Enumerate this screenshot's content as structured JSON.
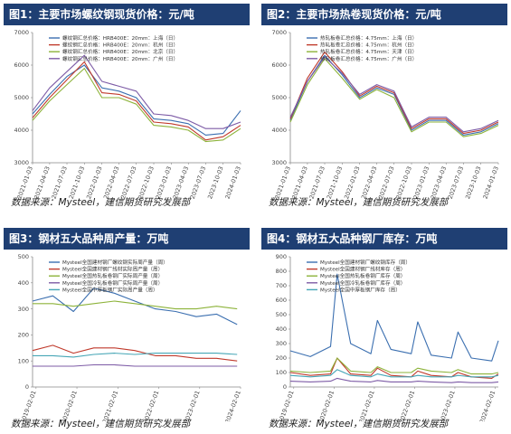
{
  "source_text": "数据来源：Mysteel，建信期货研究发展部",
  "chart_data": [
    {
      "type": "line",
      "title": "图1：主要市场螺纹钢现货价格：元/吨",
      "x": [
        "2021-01-03",
        "2021-04-03",
        "2021-07-03",
        "2021-10-03",
        "2022-01-03",
        "2022-04-03",
        "2022-07-03",
        "2022-10-03",
        "2023-01-03",
        "2023-04-03",
        "2023-07-03",
        "2023-10-03",
        "2024-01-03"
      ],
      "xticks": [
        "2021-01-03",
        "2021-04-03",
        "2021-07-03",
        "2021-10-03",
        "2022-01-03",
        "2022-04-03",
        "2022-07-03",
        "2022-10-03",
        "2023-01-03",
        "2023-04-03",
        "2023-07-03",
        "2023-10-03",
        "2024-01-03"
      ],
      "ylim": [
        3000,
        7000
      ],
      "yticks": [
        "7000",
        "6000",
        "5000",
        "4000",
        "3000"
      ],
      "grid": false,
      "legend": "top-left",
      "series": [
        {
          "name": "螺纹钢汇总价格：HRB400E：20mm：上海（日）",
          "color": "#3b6fb0",
          "values": [
            4500,
            5100,
            5650,
            6000,
            5300,
            5200,
            5000,
            4350,
            4300,
            4200,
            3850,
            3900,
            4600
          ]
        },
        {
          "name": "螺纹钢汇总价格：HRB400E：20mm：杭州（日）",
          "color": "#c0392b",
          "values": [
            4380,
            5000,
            5550,
            6100,
            5150,
            5100,
            4900,
            4250,
            4200,
            4100,
            3700,
            3800,
            4150
          ]
        },
        {
          "name": "螺纹钢汇总价格：HRB400E：20mm：北京（日）",
          "color": "#8db33a",
          "values": [
            4300,
            4900,
            5400,
            5900,
            5000,
            5000,
            4800,
            4150,
            4100,
            4000,
            3650,
            3700,
            4050
          ]
        },
        {
          "name": "螺纹钢汇总价格：HRB400E：20mm：广州（日）",
          "color": "#7d5ba6",
          "values": [
            4600,
            5300,
            5800,
            6300,
            5500,
            5350,
            5200,
            4500,
            4450,
            4300,
            4050,
            4050,
            4250
          ]
        }
      ]
    },
    {
      "type": "line",
      "title": "图2：主要市场热卷现货价格：元/吨",
      "x": [
        "2021-01-03",
        "2021-04-03",
        "2021-07-03",
        "2021-10-03",
        "2022-01-03",
        "2022-04-03",
        "2022-07-03",
        "2022-10-03",
        "2023-01-03",
        "2023-04-03",
        "2023-07-03",
        "2023-10-03",
        "2024-01-03"
      ],
      "xticks": [
        "2021-01-03",
        "2021-04-03",
        "2021-07-03",
        "2021-10-03",
        "2022-01-03",
        "2022-04-03",
        "2022-07-03",
        "2022-10-03",
        "2023-01-03",
        "2023-04-03",
        "2023-07-03",
        "2023-10-03",
        "2024-01-03"
      ],
      "ylim": [
        3000,
        7000
      ],
      "yticks": [
        "7000",
        "6000",
        "5000",
        "4000",
        "3000"
      ],
      "grid": false,
      "legend": "top-left",
      "series": [
        {
          "name": "热轧板卷汇总价格：4.75mm：上海（日）",
          "color": "#3b6fb0",
          "values": [
            4300,
            5500,
            6300,
            5700,
            5000,
            5300,
            5100,
            4000,
            4300,
            4300,
            3850,
            3950,
            4200
          ]
        },
        {
          "name": "热轧板卷汇总价格：4.75mm：杭州（日）",
          "color": "#c0392b",
          "values": [
            4350,
            5600,
            6400,
            5800,
            5050,
            5350,
            5150,
            4050,
            4350,
            4350,
            3900,
            4000,
            4250
          ]
        },
        {
          "name": "热轧板卷汇总价格：4.75mm：天津（日）",
          "color": "#8db33a",
          "values": [
            4250,
            5400,
            6200,
            5600,
            4950,
            5250,
            5000,
            3950,
            4250,
            4250,
            3800,
            3900,
            4150
          ]
        },
        {
          "name": "热轧板卷汇总价格：4.75mm：广州（日）",
          "color": "#7d5ba6",
          "values": [
            4400,
            5500,
            6250,
            5750,
            5100,
            5400,
            5200,
            4100,
            4400,
            4400,
            3950,
            4050,
            4300
          ]
        }
      ]
    },
    {
      "type": "line",
      "title": "图3：钢材五大品种周产量：万吨",
      "x": [
        "2019-01-01",
        "2019-07-01",
        "2020-01-01",
        "2020-07-01",
        "2021-01-01",
        "2021-07-01",
        "2022-01-01",
        "2022-07-01",
        "2023-01-01",
        "2023-07-01",
        "2024-01-01"
      ],
      "xticks": [
        "2019-02-01",
        "2020-02-01",
        "2021-02-01",
        "2022-02-01",
        "2023-02-01",
        "2024-02-01"
      ],
      "ylim": [
        0,
        500
      ],
      "yticks": [
        "500",
        "400",
        "300",
        "200",
        "100",
        "0"
      ],
      "grid": false,
      "legend": "top-left",
      "series": [
        {
          "name": "Mysteel全国建材钢厂螺纹钢实际周产量（周）",
          "color": "#3b6fb0",
          "values": [
            330,
            350,
            290,
            380,
            360,
            330,
            300,
            290,
            270,
            280,
            240
          ]
        },
        {
          "name": "Mysteel全国建材钢厂线材实际周产量（周）",
          "color": "#c0392b",
          "values": [
            140,
            160,
            130,
            150,
            150,
            140,
            120,
            120,
            110,
            110,
            100
          ]
        },
        {
          "name": "Mysteel全国热轧板卷钢厂实际周产量（周）",
          "color": "#8db33a",
          "values": [
            320,
            320,
            310,
            320,
            330,
            320,
            310,
            300,
            300,
            310,
            300
          ]
        },
        {
          "name": "Mysteel全国冷轧板卷钢厂实际周产量（周）",
          "color": "#7d5ba6",
          "values": [
            80,
            80,
            80,
            85,
            85,
            80,
            80,
            80,
            80,
            80,
            80
          ]
        },
        {
          "name": "Mysteel全国中厚板钢厂实际周产量（周）",
          "color": "#46a6b6",
          "values": [
            120,
            120,
            115,
            125,
            130,
            125,
            130,
            130,
            130,
            130,
            125
          ]
        }
      ]
    },
    {
      "type": "line",
      "title": "图4：钢材五大品种钢厂库存：万吨",
      "x": [
        "2019-01-01",
        "2019-07-01",
        "2020-01-01",
        "2020-03-01",
        "2020-07-01",
        "2021-01-01",
        "2021-03-01",
        "2021-07-01",
        "2022-01-01",
        "2022-03-01",
        "2022-07-01",
        "2023-01-01",
        "2023-03-01",
        "2023-07-01",
        "2024-01-01",
        "2024-03-01"
      ],
      "xticks": [
        "2019-02-01",
        "2020-02-01",
        "2021-02-01",
        "2022-02-01",
        "2023-02-01",
        "2024-02-01"
      ],
      "ylim": [
        0,
        900
      ],
      "yticks": [
        "900",
        "800",
        "700",
        "600",
        "500",
        "400",
        "300",
        "200",
        "100",
        "0"
      ],
      "grid": false,
      "legend": "top-left",
      "series": [
        {
          "name": "Mysteel全国建材钢厂螺纹钢库存（周）",
          "color": "#3b6fb0",
          "values": [
            250,
            210,
            280,
            780,
            300,
            230,
            460,
            260,
            230,
            450,
            220,
            200,
            380,
            200,
            180,
            320
          ]
        },
        {
          "name": "Mysteel全国建材钢厂线材库存（周）",
          "color": "#c0392b",
          "values": [
            100,
            80,
            90,
            200,
            90,
            80,
            130,
            80,
            70,
            110,
            80,
            70,
            100,
            70,
            60,
            90
          ]
        },
        {
          "name": "Mysteel全国热轧板卷钢厂库存（周）",
          "color": "#8db33a",
          "values": [
            110,
            100,
            110,
            200,
            110,
            100,
            140,
            100,
            100,
            130,
            110,
            100,
            120,
            90,
            90,
            100
          ]
        },
        {
          "name": "Mysteel全国冷轧板卷钢厂库存（周）",
          "color": "#7d5ba6",
          "values": [
            40,
            35,
            40,
            60,
            40,
            35,
            45,
            35,
            35,
            40,
            35,
            30,
            35,
            30,
            30,
            35
          ]
        },
        {
          "name": "Mysteel全国中厚板钢厂库存（周）",
          "color": "#46a6b6",
          "values": [
            80,
            70,
            80,
            120,
            80,
            70,
            90,
            70,
            70,
            80,
            70,
            70,
            80,
            70,
            70,
            80
          ]
        }
      ]
    }
  ]
}
